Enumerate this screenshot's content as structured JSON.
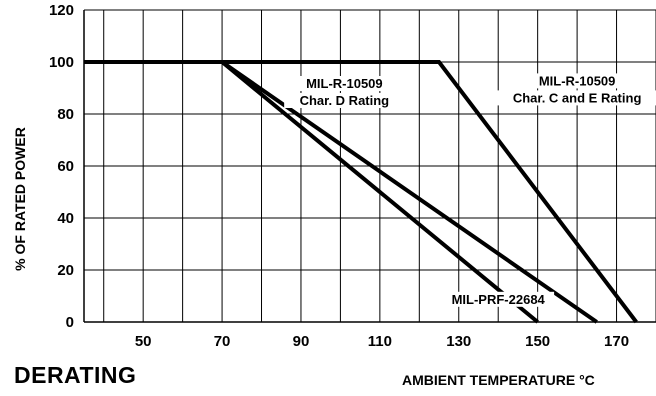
{
  "heading": "DERATING",
  "chart_data": {
    "type": "line",
    "title": "",
    "xlabel": "AMBIENT TEMPERATURE °C",
    "ylabel": "% OF RATED POWER",
    "xlim": [
      35,
      180
    ],
    "ylim": [
      0,
      120
    ],
    "x_ticks": [
      50,
      70,
      90,
      110,
      130,
      150,
      170
    ],
    "y_ticks": [
      0,
      20,
      40,
      60,
      80,
      100,
      120
    ],
    "x_gridlines": [
      40,
      50,
      60,
      70,
      80,
      90,
      100,
      110,
      120,
      130,
      140,
      150,
      160,
      170,
      180
    ],
    "y_gridlines": [
      0,
      20,
      40,
      60,
      80,
      100,
      120
    ],
    "grid": true,
    "series": [
      {
        "name": "MIL-R-10509 Char. D Rating",
        "x": [
          35,
          70,
          165
        ],
        "y": [
          100,
          100,
          0
        ]
      },
      {
        "name": "MIL-PRF-22684",
        "x": [
          35,
          70,
          150
        ],
        "y": [
          100,
          100,
          0
        ]
      },
      {
        "name": "MIL-R-10509 Char. C and E Rating",
        "x": [
          35,
          125,
          175
        ],
        "y": [
          100,
          100,
          0
        ]
      }
    ],
    "annotations": [
      {
        "lines": [
          "MIL-R-10509",
          "Char. D Rating"
        ],
        "x": 101,
        "y": 90
      },
      {
        "lines": [
          "MIL-R-10509",
          "Char. C and E Rating"
        ],
        "x": 160,
        "y": 91
      },
      {
        "lines": [
          "MIL-PRF-22684"
        ],
        "x": 140,
        "y": 7
      }
    ]
  }
}
